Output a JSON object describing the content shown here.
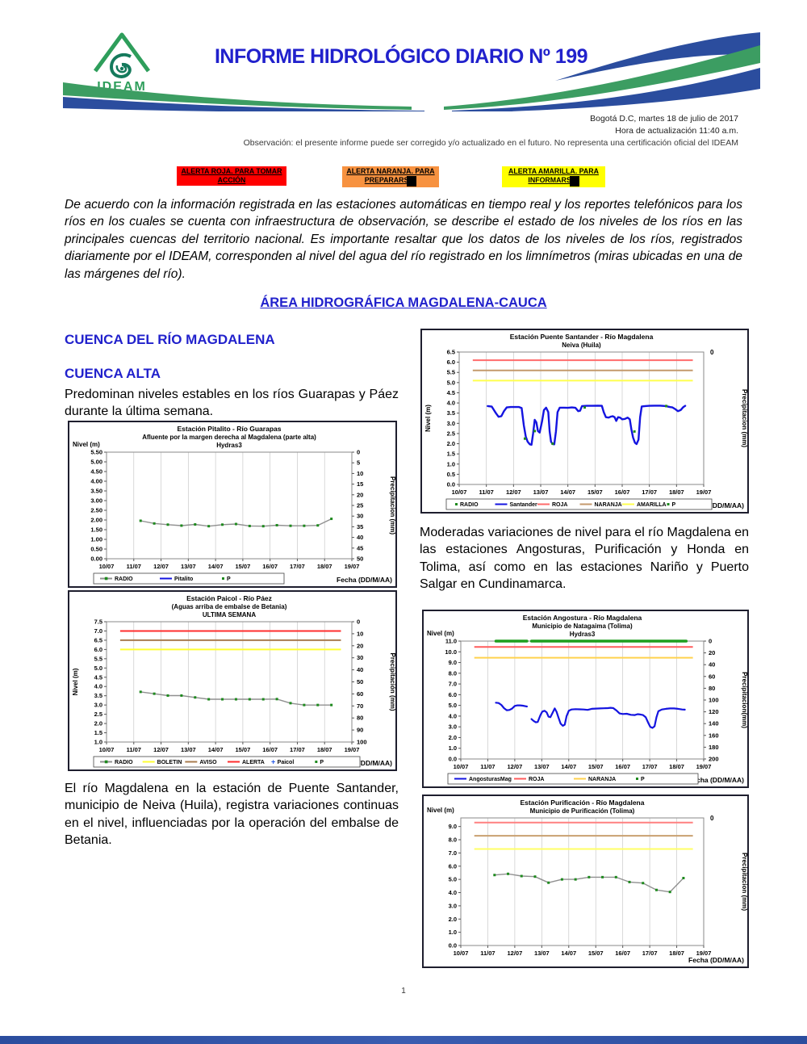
{
  "colors": {
    "blue_heading": "#2121CC",
    "wave_green": "#3C9D62",
    "wave_blue": "#2B4D9E",
    "series_blue": "#1414E0",
    "radio_green": "#1E8A1E",
    "radio_gray": "#909090"
  },
  "page": {
    "logo_text": "IDEAM",
    "title": "INFORME HIDROLÓGICO DIARIO Nº 199",
    "date_line1": "Bogotá D.C, martes 18 de julio de 2017",
    "date_line2": "Hora de actualización 11:40 a.m.",
    "observation": "Observación: el presente informe puede ser corregido y/o actualizado en el futuro. No representa una certificación oficial del IDEAM",
    "page_number": "1"
  },
  "alerts": [
    {
      "line1": "ALERTA ROJA. PARA TOMAR",
      "line2": "ACCIÓN",
      "color": "#FF0000",
      "redacted": false
    },
    {
      "line1": "ALERTA NARANJA. PARA",
      "line2": "PREPARARSE",
      "color": "#F79240",
      "redacted": true
    },
    {
      "line1": "ALERTA AMARILLA. PARA",
      "line2": "INFORMARSE",
      "color": "#FFFF00",
      "redacted": true
    }
  ],
  "intro_paragraph": "De acuerdo con la información registrada en las estaciones automáticas en tiempo real y los reportes telefónicos para los ríos en los cuales se cuenta con infraestructura de observación, se describe el estado de los niveles de los ríos en las principales cuencas del territorio nacional. Es importante resaltar que los datos de los niveles de los ríos, registrados diariamente por el IDEAM, corresponden al nivel del agua del río registrado en los limnímetros (miras ubicadas en una de las márgenes del río).",
  "section_title": "ÁREA HIDROGRÁFICA MAGDALENA-CAUCA",
  "left_column": {
    "heading1": "CUENCA DEL RÍO MAGDALENA",
    "heading2": "CUENCA ALTA",
    "paragraph1": "Predominan niveles estables en los ríos Guarapas y Páez durante la última semana.",
    "paragraph2": "El río Magdalena en la estación de Puente Santander, municipio de Neiva (Huila), registra variaciones continuas en el nivel, influenciadas por la operación del embalse de Betania."
  },
  "right_column": {
    "paragraph1": "Moderadas variaciones de nivel para el río Magdalena en las estaciones Angosturas, Purificación y Honda en Tolima, así como en las estaciones Nariño y Puerto Salgar en Cundinamarca."
  },
  "chart_data": [
    {
      "id": "pitalito",
      "type": "line",
      "title": "Estación Pitalito  - Río Guarapas",
      "subtitle1": "Afluente por la margen derecha al Magdalena (parte alta)",
      "subtitle2": "Hydras3",
      "ylabel_left": "Nivel (m)",
      "ylabel_left_vertical": false,
      "ylabel_right": "Precipitacion (mm)",
      "xlabel": "Fecha (DD/M/AA)",
      "x_ticks": [
        "10/07",
        "11/07",
        "12/07",
        "13/07",
        "14/07",
        "15/07",
        "16/07",
        "17/07",
        "18/07",
        "19/07"
      ],
      "y_left": {
        "min": 0,
        "max": 5.5,
        "step": 0.5,
        "decimals": 2
      },
      "y_right": {
        "min": 0,
        "max": 50,
        "step": 5
      },
      "thresholds": [],
      "series": [
        {
          "name": "RADIO",
          "color": "#909090",
          "width": 1.4,
          "marker_color": "#1E8A1E",
          "x": [
            1.25,
            1.75,
            2.25,
            2.75,
            3.25,
            3.75,
            4.25,
            4.75,
            5.25,
            5.75,
            6.25,
            6.75,
            7.25,
            7.75,
            8.25
          ],
          "y": [
            1.96,
            1.82,
            1.76,
            1.71,
            1.77,
            1.68,
            1.76,
            1.79,
            1.69,
            1.68,
            1.73,
            1.7,
            1.7,
            1.72,
            2.06
          ]
        }
      ],
      "legend": [
        {
          "label": "RADIO",
          "swatch": "line-marker",
          "color": "#909090",
          "marker_color": "#1E8A1E"
        },
        {
          "label": "Pitalito",
          "swatch": "line",
          "color": "#1414E0"
        },
        {
          "label": "P",
          "swatch": "dot",
          "color": "#1E8A1E"
        }
      ]
    },
    {
      "id": "paicol",
      "type": "line",
      "title": "Estación Paicol  - Río Páez",
      "subtitle1": "(Aguas arriba de embalse de Betania)",
      "subtitle2": "ULTIMA SEMANA",
      "ylabel_left": "Nivel (m)",
      "ylabel_left_vertical": true,
      "ylabel_right": "Precipitación (mm)",
      "xlabel": "Fecha (DD/M/AA)",
      "x_ticks": [
        "10/07",
        "11/07",
        "12/07",
        "13/07",
        "14/07",
        "15/07",
        "16/07",
        "17/07",
        "18/07",
        "19/07"
      ],
      "y_left": {
        "min": 1.0,
        "max": 7.5,
        "step": 0.5,
        "decimals": 1
      },
      "y_right": {
        "min": 0,
        "max": 100,
        "step": 10
      },
      "thresholds": [
        {
          "name": "ALERTA",
          "value": 7.0,
          "color": "#FF2E2E"
        },
        {
          "name": "AVISO",
          "value": 6.5,
          "color": "#A87C4F"
        },
        {
          "name": "BOLETIN",
          "value": 6.0,
          "color": "#FFFF33"
        }
      ],
      "series": [
        {
          "name": "RADIO",
          "color": "#909090",
          "width": 1.4,
          "marker_color": "#1E8A1E",
          "x": [
            1.25,
            1.75,
            2.25,
            2.75,
            3.25,
            3.75,
            4.25,
            4.75,
            5.25,
            5.75,
            6.25,
            6.75,
            7.25,
            7.75,
            8.25
          ],
          "y": [
            3.71,
            3.61,
            3.51,
            3.51,
            3.41,
            3.31,
            3.31,
            3.31,
            3.31,
            3.31,
            3.32,
            3.1,
            3.0,
            3.0,
            3.0
          ]
        }
      ],
      "legend": [
        {
          "label": "RADIO",
          "swatch": "line-marker",
          "color": "#909090",
          "marker_color": "#1E8A1E"
        },
        {
          "label": "BOLETIN",
          "swatch": "line",
          "color": "#FFFF33"
        },
        {
          "label": "AVISO",
          "swatch": "line",
          "color": "#A87C4F"
        },
        {
          "label": "ALERTA",
          "swatch": "line",
          "color": "#FF2E2E"
        },
        {
          "label": "Paicol",
          "swatch": "plus",
          "color": "#2255E6"
        },
        {
          "label": "P",
          "swatch": "dot",
          "color": "#1E8A1E"
        }
      ]
    },
    {
      "id": "puente-santander",
      "type": "line",
      "title": "Estación Puente Santander - Río Magdalena",
      "subtitle1": "Neiva (Huila)",
      "ylabel_left": "Nivel (m)",
      "ylabel_left_vertical": true,
      "ylabel_right": "Precipitacion (mm)",
      "xlabel": "Fecha (DD/M/AA)",
      "x_ticks": [
        "10/07",
        "11/07",
        "12/07",
        "13/07",
        "14/07",
        "15/07",
        "16/07",
        "17/07",
        "18/07",
        "19/07"
      ],
      "y_left": {
        "min": 0.0,
        "max": 6.5,
        "step": 0.5,
        "decimals": 1
      },
      "y_right": {
        "zero_only": true
      },
      "thresholds": [
        {
          "name": "ROJA",
          "value": 6.1,
          "color": "#FF6B6B"
        },
        {
          "name": "NARANJA",
          "value": 5.6,
          "color": "#C49A6C"
        },
        {
          "name": "AMARILLA",
          "value": 5.1,
          "color": "#FFFF4D"
        }
      ],
      "series": [
        {
          "name": "Santander",
          "color": "#1414E0",
          "width": 2.4,
          "x": [
            1.05,
            1.2,
            1.35,
            1.45,
            1.55,
            1.65,
            1.75,
            1.9,
            2.05,
            2.2,
            2.3,
            2.38,
            2.45,
            2.52,
            2.6,
            2.66,
            2.72,
            2.78,
            2.84,
            2.9,
            2.96,
            3.05,
            3.12,
            3.2,
            3.28,
            3.33,
            3.38,
            3.44,
            3.5,
            3.56,
            3.62,
            3.7,
            3.85,
            4.0,
            4.15,
            4.28,
            4.38,
            4.45,
            4.52,
            4.7,
            4.9,
            5.1,
            5.25,
            5.32,
            5.4,
            5.5,
            5.58,
            5.65,
            5.72,
            5.78,
            5.85,
            5.92,
            6.0,
            6.1,
            6.2,
            6.28,
            6.34,
            6.4,
            6.47,
            6.53,
            6.6,
            6.66,
            6.72,
            6.85,
            7.0,
            7.2,
            7.4,
            7.6,
            7.75,
            7.85,
            7.95,
            8.05,
            8.15,
            8.25,
            8.32
          ],
          "y": [
            3.85,
            3.82,
            3.5,
            3.32,
            3.35,
            3.6,
            3.78,
            3.8,
            3.8,
            3.8,
            3.75,
            2.9,
            2.35,
            2.1,
            1.97,
            1.95,
            2.5,
            3.17,
            3.05,
            2.62,
            2.55,
            3.1,
            3.65,
            3.77,
            3.55,
            2.6,
            2.1,
            1.98,
            1.97,
            2.6,
            3.55,
            3.77,
            3.77,
            3.76,
            3.78,
            3.76,
            3.6,
            3.62,
            3.85,
            3.86,
            3.86,
            3.87,
            3.86,
            3.55,
            3.3,
            3.28,
            3.33,
            3.35,
            3.3,
            3.12,
            3.3,
            3.28,
            3.2,
            3.22,
            3.28,
            3.2,
            2.7,
            2.3,
            2.05,
            1.98,
            2.2,
            3.3,
            3.83,
            3.85,
            3.86,
            3.87,
            3.87,
            3.85,
            3.8,
            3.78,
            3.7,
            3.6,
            3.65,
            3.8,
            3.86
          ]
        },
        {
          "name": "RADIO",
          "line": false,
          "color": "#1E8A1E",
          "marker_color": "#1E8A1E",
          "x": [
            2.42,
            2.78,
            3.44,
            4.62,
            6.45,
            7.62
          ],
          "y": [
            2.25,
            2.62,
            2.0,
            3.78,
            2.6,
            3.85
          ]
        }
      ],
      "legend": [
        {
          "label": "RADIO",
          "swatch": "dot",
          "color": "#1E8A1E"
        },
        {
          "label": "Santander",
          "swatch": "line",
          "color": "#1414E0"
        },
        {
          "label": "ROJA",
          "swatch": "line",
          "color": "#FF6B6B"
        },
        {
          "label": "NARANJA",
          "swatch": "line",
          "color": "#C49A6C"
        },
        {
          "label": "AMARILLA",
          "swatch": "line",
          "color": "#FFFF4D"
        },
        {
          "label": "P",
          "swatch": "dot",
          "color": "#1E8A1E"
        }
      ]
    },
    {
      "id": "angostura",
      "type": "line",
      "title": "Estación Angostura - Río Magdalena",
      "subtitle1": "Municipio de Natagaima (Tolima)",
      "subtitle2": "Hydras3",
      "ylabel_left": "Nivel (m)",
      "ylabel_left_vertical": false,
      "ylabel_right": "Precipitacion(mm)",
      "xlabel": "Fecha (DD/M/AA)",
      "x_ticks": [
        "10/07",
        "11/07",
        "12/07",
        "13/07",
        "14/07",
        "15/07",
        "16/07",
        "17/07",
        "18/07",
        "19/07"
      ],
      "y_left": {
        "min": 0.0,
        "max": 11.0,
        "step": 1.0,
        "decimals": 1
      },
      "y_right": {
        "min": 0,
        "max": 200,
        "step": 20
      },
      "thresholds": [
        {
          "name": "ROJA",
          "value": 10.45,
          "color": "#FF5C5C"
        },
        {
          "name": "NARANJA",
          "value": 9.45,
          "color": "#FFD24D"
        }
      ],
      "series": [
        {
          "name": "P",
          "color": "#1F9E1F",
          "width": 3.5,
          "x": [
            1.3,
            2.45
          ],
          "y": [
            11.0,
            11.0
          ]
        },
        {
          "name": "P",
          "color": "#1F9E1F",
          "width": 3.5,
          "x": [
            2.62,
            8.35
          ],
          "y": [
            11.0,
            11.0
          ]
        },
        {
          "name": "AngosturasMag",
          "color": "#1414E0",
          "width": 2.2,
          "x": [
            1.3,
            1.4,
            1.5,
            1.6,
            1.7,
            1.8,
            1.9,
            2.0,
            2.1,
            2.2,
            2.3,
            2.4,
            2.45
          ],
          "y": [
            5.25,
            5.22,
            5.05,
            4.75,
            4.55,
            4.57,
            4.7,
            4.95,
            5.0,
            5.0,
            4.97,
            4.92,
            4.9
          ]
        },
        {
          "name": "AngosturasMag",
          "color": "#1414E0",
          "width": 2.2,
          "x": [
            2.62,
            2.7,
            2.78,
            2.85,
            2.95,
            3.02,
            3.1,
            3.18,
            3.25,
            3.32,
            3.4,
            3.48,
            3.55,
            3.62,
            3.7,
            3.78,
            3.85,
            3.92,
            4.0,
            4.1,
            4.25,
            4.4,
            4.55,
            4.7,
            4.85,
            5.0,
            5.15,
            5.3,
            5.45,
            5.55,
            5.65,
            5.78,
            5.88,
            6.0,
            6.15,
            6.3,
            6.45,
            6.55,
            6.65,
            6.75,
            6.85,
            6.95,
            7.02,
            7.1,
            7.18,
            7.25,
            7.32,
            7.45,
            7.6,
            7.75,
            7.9,
            8.05,
            8.2,
            8.3
          ],
          "y": [
            3.72,
            3.55,
            3.42,
            3.45,
            4.1,
            4.42,
            4.5,
            4.35,
            3.95,
            3.9,
            4.3,
            4.72,
            4.4,
            3.85,
            3.3,
            3.1,
            3.2,
            4.0,
            4.5,
            4.62,
            4.65,
            4.63,
            4.62,
            4.58,
            4.68,
            4.7,
            4.72,
            4.73,
            4.75,
            4.78,
            4.75,
            4.5,
            4.25,
            4.2,
            4.22,
            4.12,
            4.1,
            4.18,
            4.15,
            4.1,
            3.9,
            3.35,
            3.0,
            2.9,
            3.05,
            3.9,
            4.45,
            4.62,
            4.68,
            4.72,
            4.72,
            4.68,
            4.62,
            4.6
          ]
        }
      ],
      "legend": [
        {
          "label": "AngosturasMag",
          "swatch": "line",
          "color": "#1414E0"
        },
        {
          "label": "ROJA",
          "swatch": "line",
          "color": "#FF5C5C"
        },
        {
          "label": "NARANJA",
          "swatch": "line",
          "color": "#FFD24D"
        },
        {
          "label": "P",
          "swatch": "dot",
          "color": "#1E8A1E"
        }
      ]
    },
    {
      "id": "purificacion",
      "type": "line",
      "title": "Estación Purificación - Río Magdalena",
      "subtitle1": "Municipio de Purificación (Tolima)",
      "ylabel_left": "Nivel (m)",
      "ylabel_left_vertical": false,
      "ylabel_right": "Precipitacion (mm)",
      "xlabel": "Fecha (DD/M/AA)",
      "x_ticks": [
        "10/07",
        "11/07",
        "12/07",
        "13/07",
        "14/07",
        "15/07",
        "16/07",
        "17/07",
        "18/07",
        "19/07"
      ],
      "y_left": {
        "min": 0.0,
        "max": 9.0,
        "step": 1.0,
        "decimals": 1,
        "plot_max": 9.65
      },
      "y_right": {
        "zero_only": true
      },
      "thresholds": [
        {
          "value": 9.3,
          "color": "#FF8080"
        },
        {
          "value": 8.3,
          "color": "#C9A070"
        },
        {
          "value": 7.3,
          "color": "#FFFF66"
        }
      ],
      "series": [
        {
          "name": "RADIO",
          "color": "#909090",
          "width": 1.4,
          "marker_color": "#1E8A1E",
          "x": [
            1.25,
            1.75,
            2.25,
            2.75,
            3.25,
            3.75,
            4.25,
            4.75,
            5.25,
            5.75,
            6.25,
            6.75,
            7.25,
            7.75,
            8.25
          ],
          "y": [
            5.33,
            5.42,
            5.25,
            5.21,
            4.75,
            5.0,
            5.0,
            5.17,
            5.17,
            5.17,
            4.8,
            4.72,
            4.2,
            4.05,
            5.1
          ]
        }
      ],
      "legend": null
    }
  ]
}
